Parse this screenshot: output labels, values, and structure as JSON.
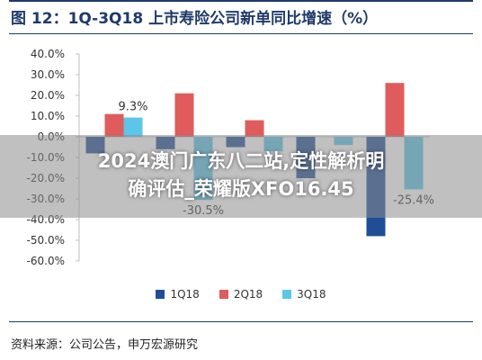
{
  "title": "图 12：1Q-3Q18 上市寿险公司新单同比增速（%）",
  "source": "资料来源：公司公告，申万宏源研究",
  "banner": {
    "line1": "2024澳门广东八二站,定性解析明",
    "line2": "确评估_荣耀版XFO16.45"
  },
  "colors": {
    "title": "#1f3a6b",
    "series": [
      "#1f4e96",
      "#e05b5b",
      "#5cc6e8"
    ],
    "axis": "#bfbfbf",
    "banner": "#8c8c8c"
  },
  "chart_data": {
    "type": "bar",
    "yticks": [
      "40.0%",
      "30.0%",
      "20.0%",
      "10.0%",
      "0.0%",
      "-10.0%",
      "-20.0%",
      "-30.0%",
      "-40.0%",
      "-50.0%",
      "-60.0%"
    ],
    "ylim": [
      -60,
      40
    ],
    "grid": false,
    "legend_position": "bottom",
    "categories": [
      "",
      "",
      "",
      "",
      ""
    ],
    "series": [
      {
        "name": "1Q18",
        "values": [
          -8,
          -6,
          -5,
          -20,
          -48
        ]
      },
      {
        "name": "2Q18",
        "values": [
          11,
          21,
          8,
          0,
          26
        ]
      },
      {
        "name": "3Q18",
        "values": [
          9.3,
          -30.5,
          -7,
          -4,
          -25.4
        ]
      }
    ],
    "annotations": [
      "9.3%",
      "-30.5%",
      "-25.4%"
    ]
  }
}
